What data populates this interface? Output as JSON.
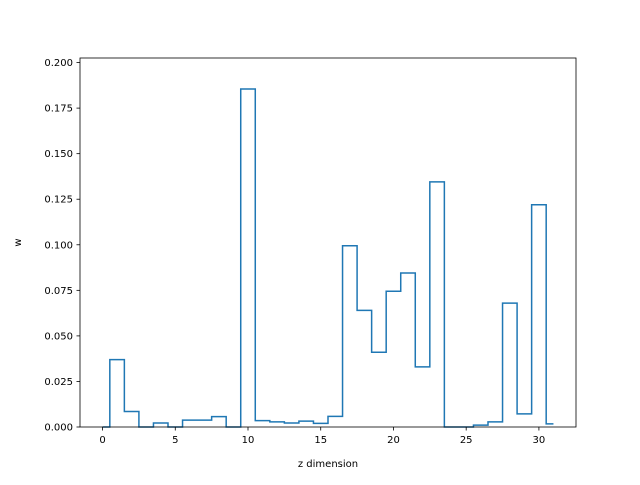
{
  "chart_data": {
    "type": "line",
    "style": "step",
    "xlabel": "z dimension",
    "ylabel": "w",
    "xlim": [
      -1.55,
      32.55
    ],
    "ylim": [
      0.0,
      0.2025
    ],
    "x_ticks": [
      0,
      5,
      10,
      15,
      20,
      25,
      30
    ],
    "x_tick_labels": [
      "0",
      "5",
      "10",
      "15",
      "20",
      "25",
      "30"
    ],
    "y_ticks": [
      0.0,
      0.025,
      0.05,
      0.075,
      0.1,
      0.125,
      0.15,
      0.175,
      0.2
    ],
    "y_tick_labels": [
      "0.000",
      "0.025",
      "0.050",
      "0.075",
      "0.100",
      "0.125",
      "0.150",
      "0.175",
      "0.200"
    ],
    "grid": false,
    "series": [
      {
        "color": "#1f77b4",
        "x": [
          0,
          1,
          2,
          3,
          4,
          5,
          6,
          7,
          8,
          9,
          10,
          11,
          12,
          13,
          14,
          15,
          16,
          17,
          18,
          19,
          20,
          21,
          22,
          23,
          24,
          25,
          26,
          27,
          28,
          29,
          30,
          31
        ],
        "values": [
          0.0,
          0.037,
          0.0085,
          0.0,
          0.0022,
          0.0,
          0.0038,
          0.0038,
          0.0057,
          0.0,
          0.1855,
          0.0035,
          0.0028,
          0.0022,
          0.0032,
          0.002,
          0.0058,
          0.0995,
          0.064,
          0.041,
          0.0745,
          0.0845,
          0.033,
          0.1345,
          0.0,
          0.0,
          0.001,
          0.0028,
          0.068,
          0.0072,
          0.122,
          0.0017
        ]
      }
    ]
  }
}
